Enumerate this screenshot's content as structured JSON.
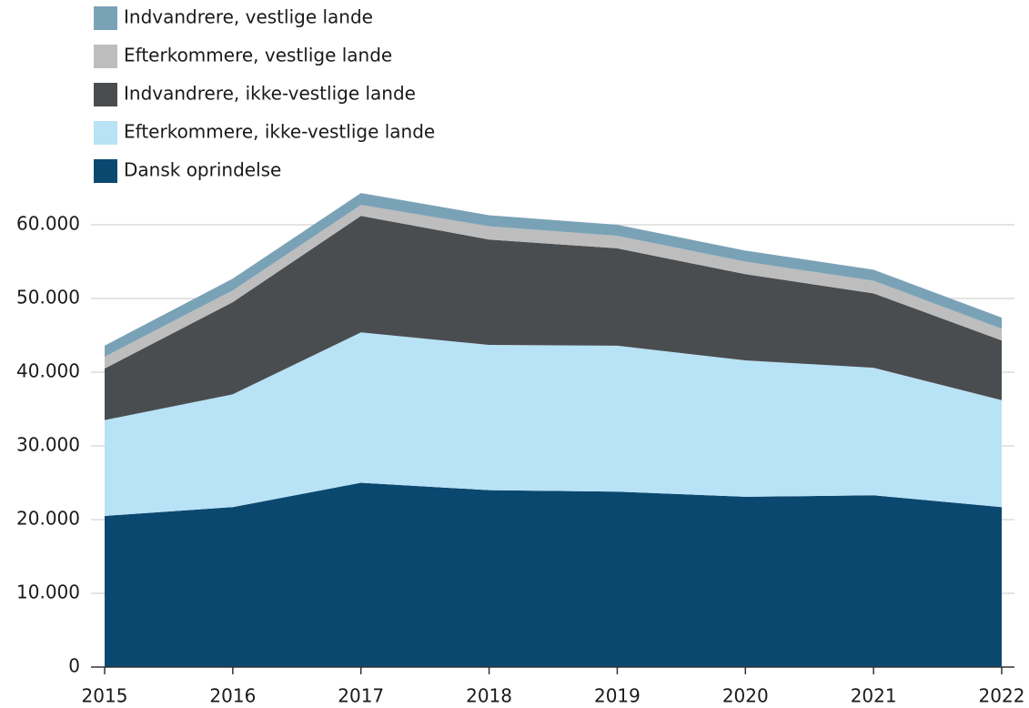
{
  "chart_data": {
    "type": "stacked_area",
    "categories": [
      "2015",
      "2016",
      "2017",
      "2018",
      "2019",
      "2020",
      "2021",
      "2022"
    ],
    "series": [
      {
        "name": "Indvandrere, vestlige lande",
        "color": "#7aa2b7",
        "values": [
          1500,
          1600,
          1600,
          1500,
          1500,
          1500,
          1500,
          1500
        ]
      },
      {
        "name": "Efterkommere, vestlige lande",
        "color": "#bdbdbd",
        "values": [
          1600,
          1600,
          1500,
          1800,
          1700,
          1700,
          1700,
          1600
        ]
      },
      {
        "name": "Indvandrere, ikke-vestlige lande",
        "color": "#4a4d50",
        "values": [
          7000,
          12500,
          15800,
          14300,
          13200,
          11700,
          10100,
          8100
        ]
      },
      {
        "name": "Efterkommere, ikke-vestlige lande",
        "color": "#b8e2f5",
        "values": [
          13000,
          15300,
          20400,
          19700,
          19800,
          18500,
          17300,
          14500
        ]
      },
      {
        "name": "Dansk oprindelse",
        "color": "#0b4870",
        "values": [
          20500,
          21700,
          25000,
          24000,
          23800,
          23100,
          23300,
          21700
        ]
      }
    ],
    "ylim": [
      0,
      65000
    ],
    "yticks": [
      0,
      {
        "value": 10000,
        "label": "10.000"
      },
      {
        "value": 20000,
        "label": "20.000"
      },
      {
        "value": 30000,
        "label": "30.000"
      },
      {
        "value": 40000,
        "label": "40.000"
      },
      {
        "value": 50000,
        "label": "50.000"
      },
      {
        "value": 60000,
        "label": "60.000"
      }
    ],
    "grid": true,
    "legend": "top-left"
  }
}
